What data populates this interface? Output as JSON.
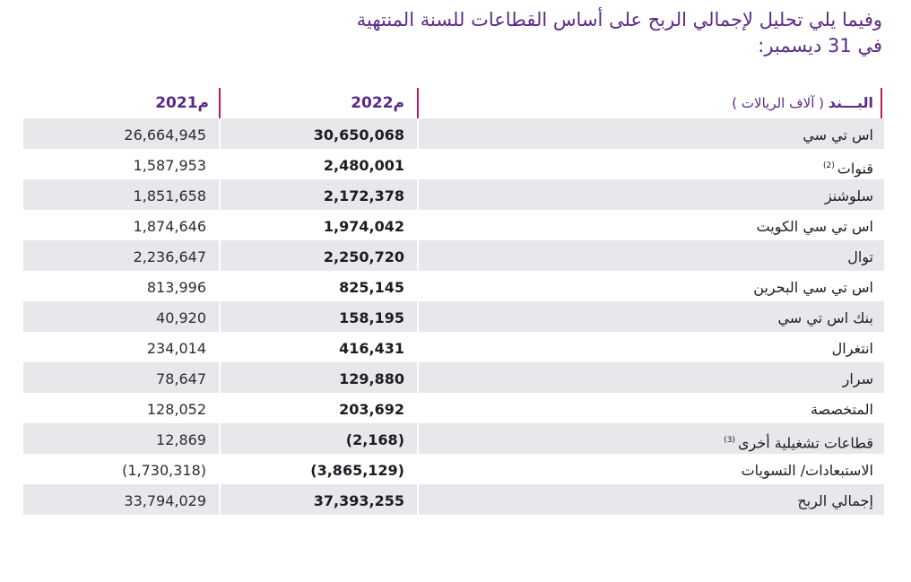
{
  "title": {
    "line1": "وفيما يلي تحليل لإجمالي الربح على أساس القطاعات للسنة المنتهية",
    "line2": "في 31 ديسمبر:"
  },
  "table": {
    "headers": {
      "item": "البـــند",
      "item_unit": "( آلاف الريالات )",
      "y2022": "2022م",
      "y2021": "2021م"
    },
    "rows": [
      {
        "label": "اس تي سي",
        "note": "",
        "v2022": "30,650,068",
        "v2021": "26,664,945"
      },
      {
        "label": "قنوات",
        "note": "(2)",
        "v2022": "2,480,001",
        "v2021": "1,587,953"
      },
      {
        "label": "سلوشنز",
        "note": "",
        "v2022": "2,172,378",
        "v2021": "1,851,658"
      },
      {
        "label": "اس تي سي الكويت",
        "note": "",
        "v2022": "1,974,042",
        "v2021": "1,874,646"
      },
      {
        "label": "توال",
        "note": "",
        "v2022": "2,250,720",
        "v2021": "2,236,647"
      },
      {
        "label": "اس تي سي البحرين",
        "note": "",
        "v2022": "825,145",
        "v2021": "813,996"
      },
      {
        "label": "بنك اس تي سي",
        "note": "",
        "v2022": "158,195",
        "v2021": "40,920"
      },
      {
        "label": "انتغرال",
        "note": "",
        "v2022": "416,431",
        "v2021": "234,014"
      },
      {
        "label": "سرار",
        "note": "",
        "v2022": "129,880",
        "v2021": "78,647"
      },
      {
        "label": "المتخصصة",
        "note": "",
        "v2022": "203,692",
        "v2021": "128,052"
      },
      {
        "label": "قطاعات تشغيلية أخرى",
        "note": "(3)",
        "v2022": "(2,168)",
        "v2021": "12,869"
      },
      {
        "label": "الاستبعادات/ التسويات",
        "note": "",
        "v2022": "(3,865,129)",
        "v2021": "(1,730,318)"
      },
      {
        "label": "إجمالي الربح",
        "note": "",
        "v2022": "37,393,255",
        "v2021": "33,794,029"
      }
    ]
  }
}
